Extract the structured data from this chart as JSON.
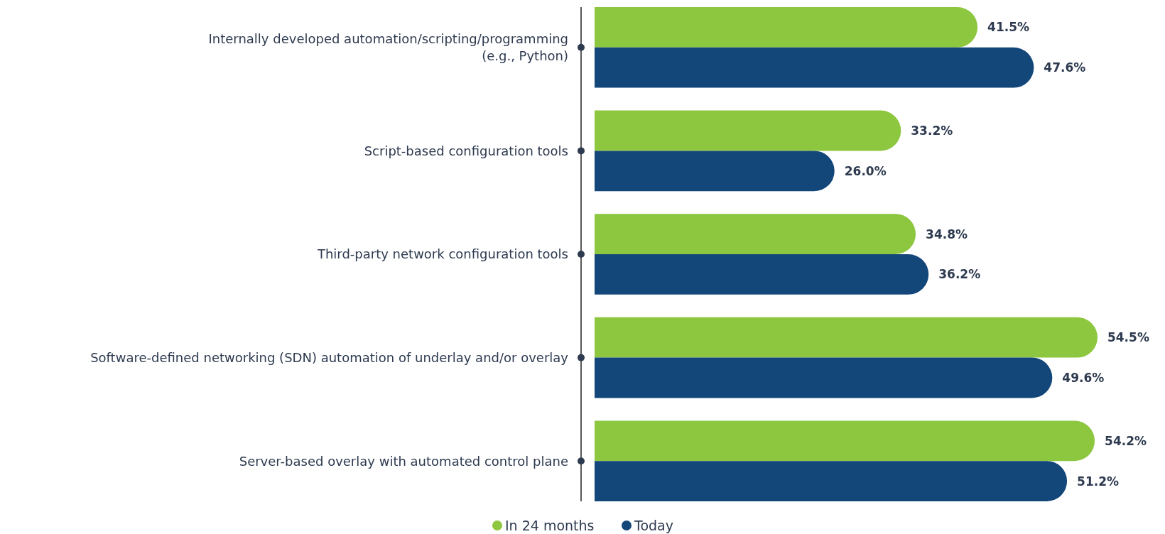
{
  "chart_data": {
    "type": "bar",
    "orientation": "horizontal",
    "categories": [
      "Internally developed automation/scripting/programming\n(e.g., Python)",
      "Script-based configuration tools",
      "Third-party network configuration tools",
      "Software-defined networking (SDN) automation of underlay and/or overlay",
      "Server-based overlay with automated control plane"
    ],
    "series": [
      {
        "name": "In 24 months",
        "color": "#8dc63f",
        "values": [
          41.5,
          33.2,
          34.8,
          54.5,
          54.2
        ],
        "value_labels": [
          "41.5%",
          "33.2%",
          "34.8%",
          "54.5%",
          "54.2%"
        ]
      },
      {
        "name": "Today",
        "color": "#134679",
        "values": [
          47.6,
          26.0,
          36.2,
          49.6,
          51.2
        ],
        "value_labels": [
          "47.6%",
          "26.0%",
          "36.2%",
          "49.6%",
          "51.2%"
        ]
      }
    ],
    "legend": "bottom"
  }
}
